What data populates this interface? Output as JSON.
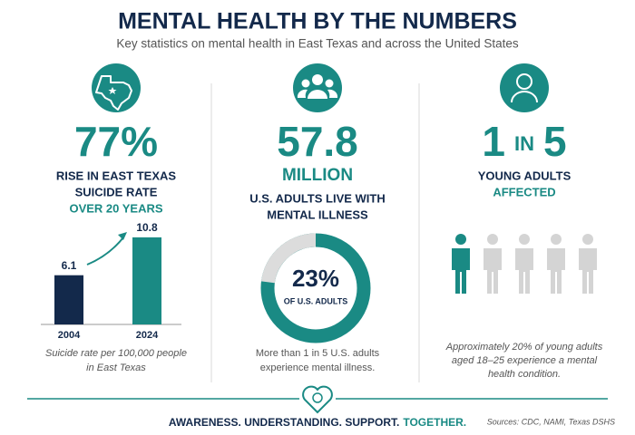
{
  "header": {
    "title": "MENTAL HEALTH BY THE NUMBERS",
    "subtitle": "Key statistics on mental health in East Texas and across the United States"
  },
  "panels": [
    {
      "stat": "77%",
      "lines": [
        "RISE IN EAST TEXAS",
        "SUICIDE RATE"
      ],
      "highlight": "OVER 20 YEARS",
      "chart": {
        "type": "bar",
        "categories": [
          "2004",
          "2024"
        ],
        "values": [
          6.1,
          10.8
        ],
        "colors": [
          "#13294b",
          "#1a8a84"
        ]
      },
      "caption": [
        "Suicide rate per 100,000 people",
        "in East Texas"
      ]
    },
    {
      "stat": "57.8",
      "unit": "MILLION",
      "lines": [
        "U.S. ADULTS LIVE WITH",
        "MENTAL ILLNESS"
      ],
      "chart": {
        "type": "donut",
        "value": 23,
        "label": "23%",
        "sublabel": "OF U.S. ADULTS",
        "colors": [
          "#dcdcdc",
          "#1a8a84"
        ]
      },
      "caption": [
        "More than 1 in 5 U.S. adults",
        "experience mental illness."
      ]
    },
    {
      "count": 1,
      "joiner": "IN",
      "of": 5,
      "lines": [
        "YOUNG ADULTS"
      ],
      "highlight": "AFFECTED",
      "colors": [
        "#1a8a84",
        "#d4d4d4"
      ],
      "caption": [
        "Approximately 20% of young adults",
        "aged 18–25 experience a mental",
        "health condition."
      ]
    }
  ],
  "footer": {
    "slogan": "AWARENESS. UNDERSTANDING. SUPPORT.",
    "slogan_highlight": "TOGETHER.",
    "sources": "Sources: CDC, NAMI, Texas DSHS"
  }
}
